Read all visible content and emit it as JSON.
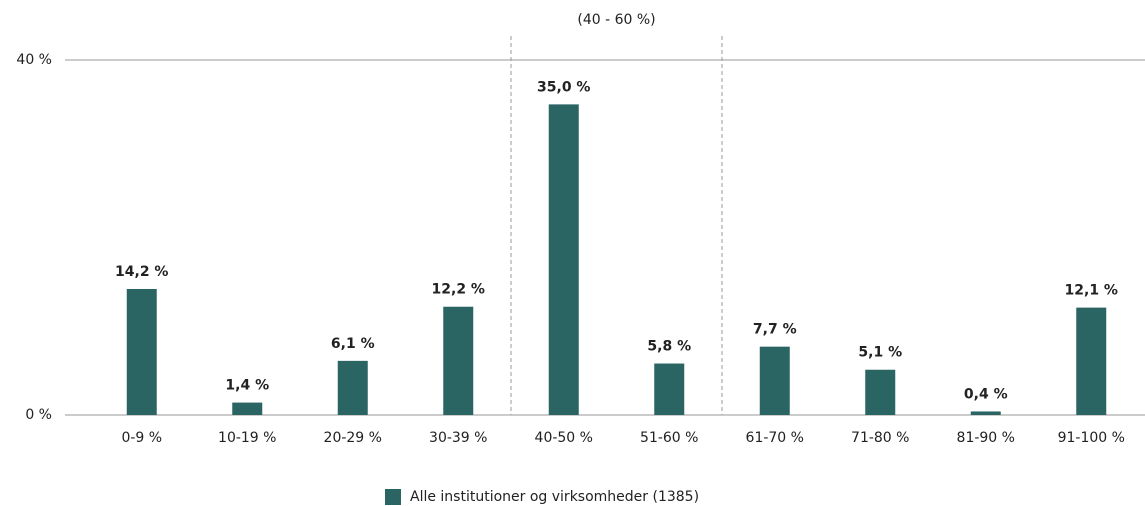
{
  "chart_data": {
    "type": "bar",
    "categories": [
      "0-9 %",
      "10-19 %",
      "20-29 %",
      "30-39 %",
      "40-50 %",
      "51-60 %",
      "61-70 %",
      "71-80 %",
      "81-90 %",
      "91-100 %"
    ],
    "series": [
      {
        "name": "Alle institutioner og virksomheder (1385)",
        "color": "#2a6564",
        "values": [
          14.2,
          1.4,
          6.1,
          12.2,
          35.0,
          5.8,
          7.7,
          5.1,
          0.4,
          12.1
        ],
        "value_labels": [
          "14,2 %",
          "1,4 %",
          "6,1 %",
          "12,2 %",
          "35,0 %",
          "5,8 %",
          "7,7 %",
          "5,1 %",
          "0,4 %",
          "12,1 %"
        ]
      }
    ],
    "ylim": [
      0,
      40
    ],
    "yticks": [
      {
        "value": 0,
        "label": "0 %"
      },
      {
        "value": 40,
        "label": "40 %"
      }
    ],
    "grid": true,
    "legend": "bottom",
    "annotation": {
      "text": "(40 - 60 %)",
      "span": [
        "40-50 %",
        "51-60 %"
      ]
    }
  }
}
